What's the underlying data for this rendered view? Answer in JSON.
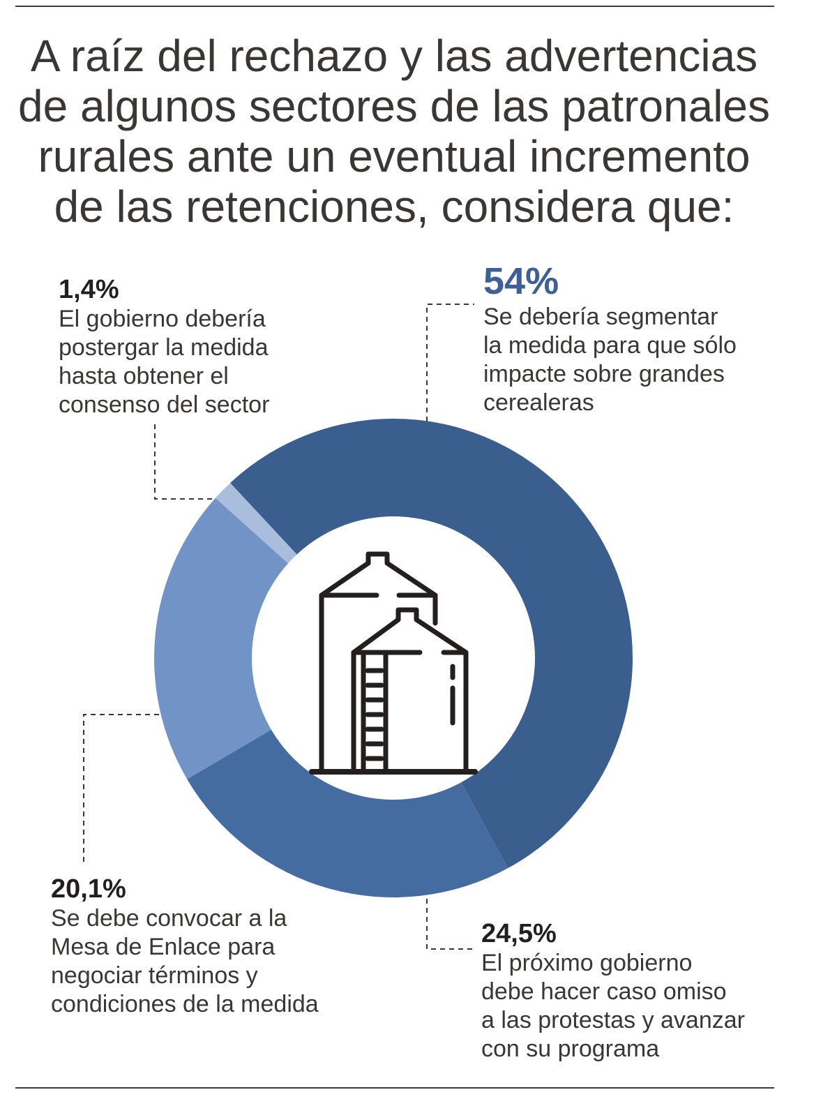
{
  "title_lines": [
    "A raíz del rechazo y las advertencias",
    "de algunos sectores de las patronales",
    "rurales ante un eventual incremento",
    "de las retenciones, considera que:"
  ],
  "colors": {
    "slice_1": "#3a5e8e",
    "slice_2": "#456ca1",
    "slice_3": "#7193c6",
    "slice_4": "#a9bedc",
    "highlight_pct": "#3d6196",
    "icon": "#231f1e"
  },
  "icon": "grain-silo-icon",
  "chart_data": {
    "type": "pie",
    "donut": true,
    "start": "top-left, clockwise",
    "slices": [
      {
        "value": 54,
        "label": "54%",
        "text_lines": [
          "Se debería segmentar",
          "la medida para que sólo",
          "impacte sobre grandes",
          "cerealeras"
        ]
      },
      {
        "value": 24.5,
        "label": "24,5%",
        "text_lines": [
          "El próximo gobierno",
          "debe hacer caso omiso",
          "a las protestas y avanzar",
          "con su programa"
        ]
      },
      {
        "value": 20.1,
        "label": "20,1%",
        "text_lines": [
          "Se debe convocar a la",
          "Mesa de Enlace para",
          "negociar términos y",
          "condiciones de la medida"
        ]
      },
      {
        "value": 1.4,
        "label": "1,4%",
        "text_lines": [
          "El gobierno debería",
          "postergar la medida",
          "hasta obtener el",
          "consenso del sector"
        ]
      }
    ]
  }
}
